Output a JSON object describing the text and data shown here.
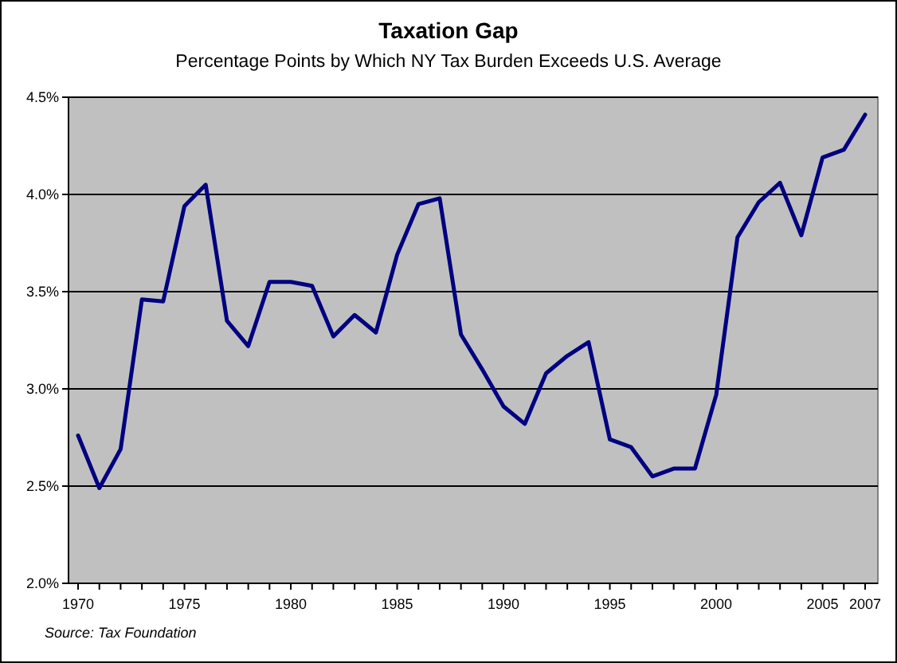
{
  "chart_data": {
    "type": "line",
    "title": "Taxation Gap",
    "subtitle": "Percentage Points by Which NY Tax Burden Exceeds U.S. Average",
    "annotations": [
      "Source: Tax Foundation"
    ],
    "x": [
      1970,
      1971,
      1972,
      1973,
      1974,
      1975,
      1976,
      1977,
      1978,
      1979,
      1980,
      1981,
      1982,
      1983,
      1984,
      1985,
      1986,
      1987,
      1988,
      1989,
      1990,
      1991,
      1992,
      1993,
      1994,
      1995,
      1996,
      1997,
      1998,
      1999,
      2000,
      2001,
      2002,
      2003,
      2004,
      2005,
      2006,
      2007
    ],
    "series": [
      {
        "color": "#000080",
        "values": [
          2.76,
          2.49,
          2.69,
          3.46,
          3.45,
          3.94,
          4.05,
          3.35,
          3.22,
          3.55,
          3.55,
          3.53,
          3.27,
          3.38,
          3.29,
          3.69,
          3.95,
          3.98,
          3.28,
          3.1,
          2.91,
          2.82,
          3.08,
          3.17,
          3.24,
          2.74,
          2.7,
          2.55,
          2.59,
          2.59,
          2.97,
          3.78,
          3.96,
          4.06,
          3.79,
          4.19,
          4.23,
          4.41
        ]
      }
    ],
    "xlim": [
      1969.55,
      2007.6
    ],
    "xticks": [
      1970,
      {
        "value": 1971,
        "label": null
      },
      {
        "value": 1972,
        "label": null
      },
      {
        "value": 1973,
        "label": null
      },
      {
        "value": 1974,
        "label": null
      },
      1975,
      {
        "value": 1976,
        "label": null
      },
      {
        "value": 1977,
        "label": null
      },
      {
        "value": 1978,
        "label": null
      },
      {
        "value": 1979,
        "label": null
      },
      1980,
      {
        "value": 1981,
        "label": null
      },
      {
        "value": 1982,
        "label": null
      },
      {
        "value": 1983,
        "label": null
      },
      {
        "value": 1984,
        "label": null
      },
      1985,
      {
        "value": 1986,
        "label": null
      },
      {
        "value": 1987,
        "label": null
      },
      {
        "value": 1988,
        "label": null
      },
      {
        "value": 1989,
        "label": null
      },
      1990,
      {
        "value": 1991,
        "label": null
      },
      {
        "value": 1992,
        "label": null
      },
      {
        "value": 1993,
        "label": null
      },
      {
        "value": 1994,
        "label": null
      },
      1995,
      {
        "value": 1996,
        "label": null
      },
      {
        "value": 1997,
        "label": null
      },
      {
        "value": 1998,
        "label": null
      },
      {
        "value": 1999,
        "label": null
      },
      2000,
      {
        "value": 2001,
        "label": null
      },
      {
        "value": 2002,
        "label": null
      },
      {
        "value": 2003,
        "label": null
      },
      {
        "value": 2004,
        "label": null
      },
      2005,
      {
        "value": 2006,
        "label": null
      },
      2007
    ],
    "ylim": [
      2,
      4.5
    ],
    "yticks": [
      {
        "value": 2,
        "label": "2.0%"
      },
      {
        "value": 2.5,
        "label": "2.5%"
      },
      {
        "value": 3,
        "label": "3.0%"
      },
      {
        "value": 3.5,
        "label": "3.5%"
      },
      {
        "value": 4,
        "label": "4.0%"
      },
      {
        "value": 4.5,
        "label": "4.5%"
      }
    ],
    "grid": "y",
    "marker": "none",
    "line_style": "solid"
  }
}
